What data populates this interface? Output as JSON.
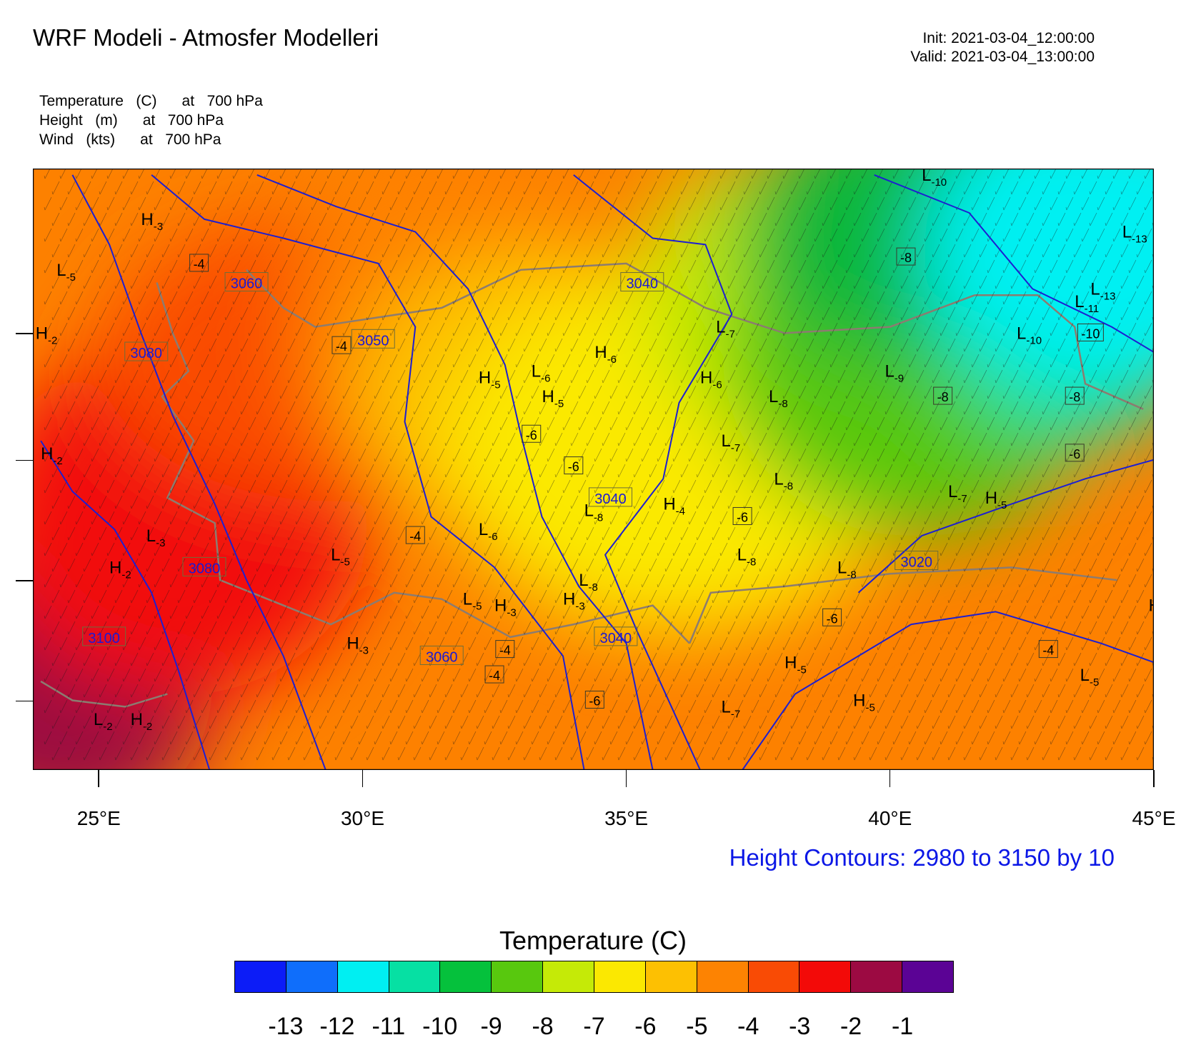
{
  "header": {
    "title": "WRF Modeli - Atmosfer Modelleri",
    "init": "Init: 2021-03-04_12:00:00",
    "valid": "Valid: 2021-03-04_13:00:00"
  },
  "fields": [
    "Temperature   (C)      at   700 hPa",
    "Height   (m)      at   700 hPa",
    "Wind   (kts)      at   700 hPa"
  ],
  "map": {
    "lon_range": [
      23.75,
      45.0
    ],
    "lat_range_deg_approx": [
      34.0,
      43.5
    ],
    "x_ticks": [
      "25°E",
      "30°E",
      "35°E",
      "40°E",
      "45°E"
    ],
    "x_tick_values": [
      25,
      30,
      35,
      40,
      45
    ],
    "temperature_regions": [
      {
        "level": "-2",
        "color": "#9b0a41",
        "lon": 24.3,
        "lat": 35.3
      },
      {
        "level": "-3",
        "color": "#f20a07",
        "lon": 26.5,
        "lat": 38.0
      },
      {
        "level": "-4",
        "color": "#fa4c02",
        "lon": 29.5,
        "lat": 40.5
      },
      {
        "level": "-5",
        "color": "#fe8100",
        "lon": 31.5,
        "lat": 41.0
      },
      {
        "level": "-6",
        "color": "#fdc101",
        "lon": 33.5,
        "lat": 40.0
      },
      {
        "level": "-7",
        "color": "#fbe900",
        "lon": 36.0,
        "lat": 39.0
      },
      {
        "level": "-8",
        "color": "#c6ea06",
        "lon": 38.0,
        "lat": 41.5
      },
      {
        "level": "-9",
        "color": "#58c80d",
        "lon": 40.5,
        "lat": 40.5
      },
      {
        "level": "-10",
        "color": "#07b73a",
        "lon": 41.5,
        "lat": 42.5
      },
      {
        "level": "-11",
        "color": "#04e29f",
        "lon": 43.5,
        "lat": 42.0
      },
      {
        "level": "-12",
        "color": "#00f0f2",
        "lon": 44.3,
        "lat": 42.3
      }
    ],
    "height_contour_labels": [
      {
        "text": "3060",
        "lon": 27.8,
        "lat": 41.7
      },
      {
        "text": "3040",
        "lon": 35.3,
        "lat": 41.7
      },
      {
        "text": "3050",
        "lon": 30.2,
        "lat": 40.8
      },
      {
        "text": "3080",
        "lon": 25.9,
        "lat": 40.6
      },
      {
        "text": "3040",
        "lon": 34.7,
        "lat": 38.3
      },
      {
        "text": "3020",
        "lon": 40.5,
        "lat": 37.3
      },
      {
        "text": "3080",
        "lon": 27.0,
        "lat": 37.2
      },
      {
        "text": "3100",
        "lon": 25.1,
        "lat": 36.1
      },
      {
        "text": "3060",
        "lon": 31.5,
        "lat": 35.8
      },
      {
        "text": "3040",
        "lon": 34.8,
        "lat": 36.1
      }
    ],
    "temperature_labels": [
      {
        "text": "-4",
        "lon": 26.9,
        "lat": 42.0
      },
      {
        "text": "-4",
        "lon": 29.6,
        "lat": 40.7
      },
      {
        "text": "-8",
        "lon": 40.3,
        "lat": 42.1
      },
      {
        "text": "-10",
        "lon": 43.8,
        "lat": 40.9
      },
      {
        "text": "-8",
        "lon": 41.0,
        "lat": 39.9
      },
      {
        "text": "-8",
        "lon": 43.5,
        "lat": 39.9
      },
      {
        "text": "-6",
        "lon": 33.2,
        "lat": 39.3
      },
      {
        "text": "-6",
        "lon": 34.0,
        "lat": 38.8
      },
      {
        "text": "-6",
        "lon": 43.5,
        "lat": 39.0
      },
      {
        "text": "-6",
        "lon": 37.2,
        "lat": 38.0
      },
      {
        "text": "-4",
        "lon": 31.0,
        "lat": 37.7
      },
      {
        "text": "-6",
        "lon": 38.9,
        "lat": 36.4
      },
      {
        "text": "-4",
        "lon": 32.7,
        "lat": 35.9
      },
      {
        "text": "-4",
        "lon": 43.0,
        "lat": 35.9
      },
      {
        "text": "-4",
        "lon": 32.5,
        "lat": 35.5
      },
      {
        "text": "-6",
        "lon": 34.4,
        "lat": 35.1
      }
    ],
    "extrema": [
      {
        "type": "H",
        "value": "-3",
        "lon": 25.8,
        "lat": 42.7
      },
      {
        "type": "L",
        "value": "-5",
        "lon": 24.2,
        "lat": 41.9
      },
      {
        "type": "H",
        "value": "-2",
        "lon": 23.8,
        "lat": 40.9
      },
      {
        "type": "H",
        "value": "-2",
        "lon": 23.9,
        "lat": 39.0
      },
      {
        "type": "L",
        "value": "-3",
        "lon": 25.9,
        "lat": 37.7
      },
      {
        "type": "H",
        "value": "-2",
        "lon": 25.2,
        "lat": 37.2
      },
      {
        "type": "L",
        "value": "-5",
        "lon": 29.4,
        "lat": 37.4
      },
      {
        "type": "H",
        "value": "-3",
        "lon": 29.7,
        "lat": 36.0
      },
      {
        "type": "L",
        "value": "-2",
        "lon": 24.9,
        "lat": 34.8
      },
      {
        "type": "H",
        "value": "-2",
        "lon": 25.6,
        "lat": 34.8
      },
      {
        "type": "H",
        "value": "-5",
        "lon": 32.2,
        "lat": 40.2
      },
      {
        "type": "L",
        "value": "-6",
        "lon": 33.2,
        "lat": 40.3
      },
      {
        "type": "H",
        "value": "-5",
        "lon": 33.4,
        "lat": 39.9
      },
      {
        "type": "H",
        "value": "-6",
        "lon": 34.4,
        "lat": 40.6
      },
      {
        "type": "L",
        "value": "-7",
        "lon": 36.7,
        "lat": 41.0
      },
      {
        "type": "H",
        "value": "-6",
        "lon": 36.4,
        "lat": 40.2
      },
      {
        "type": "L",
        "value": "-8",
        "lon": 37.7,
        "lat": 39.9
      },
      {
        "type": "L",
        "value": "-9",
        "lon": 39.9,
        "lat": 40.3
      },
      {
        "type": "L",
        "value": "-10",
        "lon": 40.6,
        "lat": 43.4
      },
      {
        "type": "L",
        "value": "-11",
        "lon": 43.5,
        "lat": 41.4
      },
      {
        "type": "L",
        "value": "-13",
        "lon": 44.4,
        "lat": 42.5
      },
      {
        "type": "L",
        "value": "-13",
        "lon": 43.8,
        "lat": 41.6
      },
      {
        "type": "L",
        "value": "-10",
        "lon": 42.4,
        "lat": 40.9
      },
      {
        "type": "L",
        "value": "-7",
        "lon": 36.8,
        "lat": 39.2
      },
      {
        "type": "L",
        "value": "-8",
        "lon": 37.8,
        "lat": 38.6
      },
      {
        "type": "L",
        "value": "-7",
        "lon": 41.1,
        "lat": 38.4
      },
      {
        "type": "H",
        "value": "-5",
        "lon": 41.8,
        "lat": 38.3
      },
      {
        "type": "L",
        "value": "-8",
        "lon": 34.2,
        "lat": 38.1
      },
      {
        "type": "H",
        "value": "-4",
        "lon": 35.7,
        "lat": 38.2
      },
      {
        "type": "L",
        "value": "-6",
        "lon": 32.2,
        "lat": 37.8
      },
      {
        "type": "L",
        "value": "-8",
        "lon": 37.1,
        "lat": 37.4
      },
      {
        "type": "L",
        "value": "-8",
        "lon": 39.0,
        "lat": 37.2
      },
      {
        "type": "L",
        "value": "-8",
        "lon": 34.1,
        "lat": 37.0
      },
      {
        "type": "H",
        "value": "-3",
        "lon": 33.8,
        "lat": 36.7
      },
      {
        "type": "L",
        "value": "-5",
        "lon": 31.9,
        "lat": 36.7
      },
      {
        "type": "H",
        "value": "-3",
        "lon": 32.5,
        "lat": 36.6
      },
      {
        "type": "H",
        "value": "-5",
        "lon": 38.0,
        "lat": 35.7
      },
      {
        "type": "H",
        "value": "-5",
        "lon": 39.3,
        "lat": 35.1
      },
      {
        "type": "L",
        "value": "-7",
        "lon": 36.8,
        "lat": 35.0
      },
      {
        "type": "L",
        "value": "-5",
        "lon": 43.6,
        "lat": 35.5
      },
      {
        "type": "H",
        "value": "",
        "lon": 44.9,
        "lat": 36.6
      }
    ]
  },
  "height_note": "Height Contours: 2980 to 3150 by 10",
  "colorbar": {
    "title": "Temperature  (C)",
    "colors": [
      "#0c1cf7",
      "#0f6efb",
      "#00eff2",
      "#06e0a3",
      "#05c13c",
      "#58c80e",
      "#c5ea07",
      "#fbe801",
      "#fdc002",
      "#fd8302",
      "#f94b05",
      "#f30a08",
      "#9c0a42",
      "#5b0395"
    ],
    "labels": [
      "-13",
      "-12",
      "-11",
      "-10",
      "-9",
      "-8",
      "-7",
      "-6",
      "-5",
      "-4",
      "-3",
      "-2",
      "-1"
    ]
  }
}
